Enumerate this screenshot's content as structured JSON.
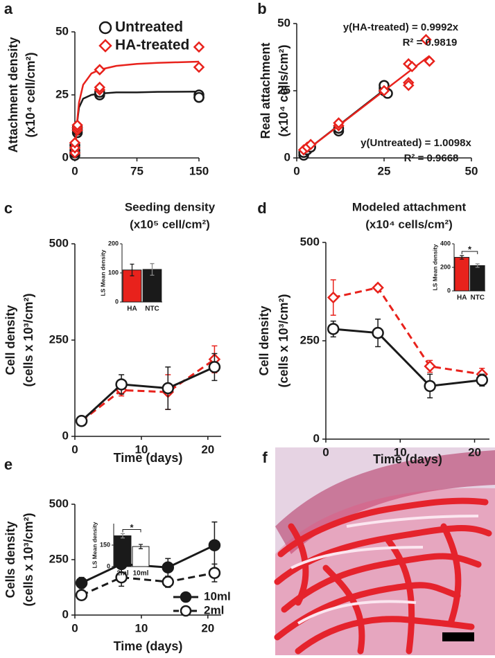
{
  "chart_data": [
    {
      "type": "scatter",
      "panel": "a",
      "ylabel": [
        "Attachment density",
        "(x10⁴ cell/cm²)"
      ],
      "xlim": [
        0,
        150
      ],
      "xticks": [
        0,
        75,
        150
      ],
      "ylim": [
        0,
        50
      ],
      "yticks": [
        0,
        25,
        50
      ],
      "legend": "top",
      "series": [
        {
          "name": "Untreated",
          "color": "#1a1a1a",
          "marker": "circle",
          "x": [
            0,
            0,
            0,
            0,
            3,
            3,
            3,
            30,
            30,
            30,
            150,
            150,
            150
          ],
          "values": [
            1,
            2,
            3,
            5,
            10,
            11,
            12,
            25,
            25,
            26,
            24,
            25,
            24
          ],
          "fit": {
            "x": [
              0,
              2,
              5,
              10,
              20,
              30,
              50,
              75,
              100,
              150
            ],
            "values": [
              0,
              12,
              20,
              23.5,
              25,
              25.5,
              26,
              26,
              26.2,
              26.3
            ]
          }
        },
        {
          "name": "HA-treated",
          "color": "#e8221c",
          "marker": "diamond",
          "x": [
            0,
            0,
            0,
            3,
            3,
            3,
            30,
            30,
            30,
            30,
            150,
            150
          ],
          "values": [
            2,
            4,
            6,
            11,
            12,
            13,
            27,
            28,
            35,
            35,
            36,
            44
          ],
          "fit": {
            "x": [
              0,
              2,
              5,
              10,
              20,
              30,
              50,
              75,
              100,
              150
            ],
            "values": [
              0,
              12,
              22,
              29,
              33.5,
              35,
              36.5,
              37.3,
              37.7,
              38.2
            ]
          }
        }
      ]
    },
    {
      "type": "scatter",
      "panel": "b",
      "ylabel": [
        "Real attachment",
        "(x10⁴ cells/cm²)"
      ],
      "xlim": [
        0,
        50
      ],
      "xticks": [
        0,
        25,
        50
      ],
      "ylim": [
        0,
        50
      ],
      "yticks": [
        0,
        25,
        50
      ],
      "annotations": [
        {
          "text": "y(HA-treated) = 0.9992x",
          "color": "#e8221c"
        },
        {
          "text": "R² = 0.9819",
          "color": "#e8221c"
        },
        {
          "text": "y(Untreated) = 1.0098x",
          "color": "#1a1a1a"
        },
        {
          "text": "R² = 0.9668",
          "color": "#1a1a1a"
        }
      ],
      "series": [
        {
          "color": "#1a1a1a",
          "marker": "circle",
          "x": [
            2,
            2,
            3,
            4,
            12,
            12,
            25,
            25,
            26,
            25
          ],
          "values": [
            1,
            2,
            3,
            4,
            10,
            11,
            26,
            25,
            24,
            27
          ],
          "fit": {
            "x": [
              2,
              26
            ],
            "values": [
              2,
              26.3
            ]
          }
        },
        {
          "color": "#e8221c",
          "marker": "diamond",
          "x": [
            2,
            3,
            4,
            12,
            12,
            25,
            32,
            32,
            32,
            33,
            37,
            38
          ],
          "values": [
            3,
            4,
            5,
            12,
            13,
            25,
            28,
            27,
            35,
            34,
            44,
            36
          ],
          "fit": {
            "x": [
              2,
              38
            ],
            "values": [
              2,
              38
            ]
          }
        }
      ]
    },
    {
      "type": "line",
      "panel": "c",
      "title": [
        "Seeding density",
        "(x10⁵ cell/cm²)"
      ],
      "ylabel": [
        "Cell density",
        "(cells x 10³/cm²)"
      ],
      "xlabel": "Time (days)",
      "xlim": [
        0,
        22
      ],
      "xticks": [
        0,
        10,
        20
      ],
      "ylim": [
        0,
        500
      ],
      "yticks": [
        0,
        250,
        500
      ],
      "x": [
        1,
        7,
        14,
        21
      ],
      "series": [
        {
          "color": "#e8221c",
          "marker": "diamond",
          "dash": true,
          "fill": false,
          "values": [
            40,
            120,
            115,
            200
          ],
          "errors": [
            5,
            15,
            45,
            35
          ]
        },
        {
          "color": "#1a1a1a",
          "marker": "circle",
          "dash": false,
          "fill": false,
          "values": [
            40,
            135,
            125,
            180
          ],
          "errors": [
            5,
            25,
            55,
            35
          ]
        }
      ],
      "inset": {
        "type": "bar",
        "ylabel": "LS Mean density",
        "categories": [
          "HA",
          "NTC"
        ],
        "values": [
          110,
          112
        ],
        "errors": [
          20,
          20
        ],
        "colors": [
          "#e8221c",
          "#1a1a1a"
        ],
        "ylim": [
          0,
          200
        ],
        "yticks": [
          0,
          100,
          200
        ]
      }
    },
    {
      "type": "line",
      "panel": "d",
      "title": [
        "Modeled attachment",
        "(x10⁴ cells/cm²)"
      ],
      "ylabel": [
        "Cell density",
        "(cells x 10³/cm²)"
      ],
      "xlabel": "Time (days)",
      "xlim": [
        0,
        22
      ],
      "xticks": [
        0,
        10,
        20
      ],
      "ylim": [
        0,
        500
      ],
      "yticks": [
        0,
        250,
        500
      ],
      "x": [
        1,
        7,
        14,
        21
      ],
      "series": [
        {
          "color": "#e8221c",
          "marker": "diamond",
          "dash": true,
          "fill": false,
          "values": [
            360,
            385,
            185,
            165
          ],
          "errors": [
            45,
            8,
            15,
            15
          ]
        },
        {
          "color": "#1a1a1a",
          "marker": "circle",
          "dash": false,
          "fill": false,
          "values": [
            280,
            270,
            135,
            150
          ],
          "errors": [
            20,
            35,
            30,
            15
          ]
        }
      ],
      "inset": {
        "type": "bar",
        "ylabel": "LS Mean density",
        "categories": [
          "HA",
          "NTC"
        ],
        "values": [
          285,
          215
        ],
        "errors": [
          15,
          15
        ],
        "colors": [
          "#e8221c",
          "#1a1a1a"
        ],
        "ylim": [
          0,
          400
        ],
        "yticks": [
          0,
          200,
          400
        ],
        "significance": "*"
      }
    },
    {
      "type": "line",
      "panel": "e",
      "ylabel": [
        "Cells density",
        "(cells x 10³/cm²)"
      ],
      "xlabel": "Time (days)",
      "xlim": [
        0,
        22
      ],
      "xticks": [
        0,
        10,
        20
      ],
      "ylim": [
        0,
        500
      ],
      "yticks": [
        0,
        250,
        500
      ],
      "legend": "lower right",
      "x": [
        1,
        7,
        14,
        21
      ],
      "series": [
        {
          "name": "10ml",
          "color": "#1a1a1a",
          "marker": "circle",
          "dash": false,
          "fill": true,
          "values": [
            145,
            230,
            215,
            315
          ],
          "errors": [
            25,
            60,
            40,
            105
          ]
        },
        {
          "name": "2ml",
          "color": "#1a1a1a",
          "marker": "circle",
          "dash": true,
          "fill": false,
          "values": [
            90,
            170,
            150,
            190
          ],
          "errors": [
            10,
            40,
            25,
            40
          ]
        }
      ],
      "inset": {
        "type": "bar",
        "ylabel": "LS Mean density",
        "categories": [
          "2ml",
          "10ml"
        ],
        "values": [
          215,
          140
        ],
        "errors": [
          15,
          15
        ],
        "colors": [
          "#1a1a1a",
          "#ffffff"
        ],
        "ylim": [
          0,
          300
        ],
        "yticks": [
          0,
          150
        ],
        "significance": "*"
      }
    }
  ],
  "image_panel": {
    "label": "f"
  }
}
